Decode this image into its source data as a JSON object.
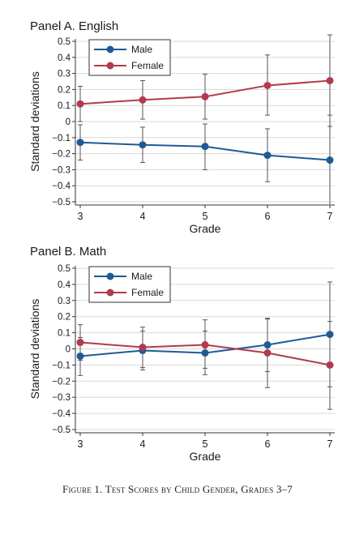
{
  "figure": {
    "caption": "Figure 1. Test Scores by Child Gender, Grades 3–7"
  },
  "colors": {
    "male": "#1f5a96",
    "female": "#b23a4c",
    "error_bar": "#555555",
    "grid": "#d9d9d9"
  },
  "chart_data": [
    {
      "type": "line",
      "title": "Panel A. English",
      "xlabel": "Grade",
      "ylabel": "Standard deviations",
      "x": [
        3,
        4,
        5,
        6,
        7
      ],
      "xticks": [
        "3",
        "4",
        "5",
        "6",
        "7"
      ],
      "ylim": [
        -0.5,
        0.5
      ],
      "yticks": [
        "0.5",
        "0.4",
        "0.3",
        "0.2",
        "0.1",
        "0",
        "−0.1",
        "−0.2",
        "−0.3",
        "−0.4",
        "−0.5"
      ],
      "grid": true,
      "legend": "top-left",
      "series": [
        {
          "name": "Male",
          "values": [
            -0.13,
            -0.145,
            -0.155,
            -0.21,
            -0.24
          ],
          "ci_low": [
            -0.24,
            -0.255,
            -0.3,
            -0.375,
            -0.52
          ],
          "ci_high": [
            -0.02,
            -0.035,
            -0.015,
            -0.045,
            0.04
          ]
        },
        {
          "name": "Female",
          "values": [
            0.11,
            0.135,
            0.155,
            0.225,
            0.255
          ],
          "ci_low": [
            0.0,
            0.015,
            0.015,
            0.04,
            -0.03
          ],
          "ci_high": [
            0.22,
            0.255,
            0.295,
            0.415,
            0.54
          ]
        }
      ]
    },
    {
      "type": "line",
      "title": "Panel B. Math",
      "xlabel": "Grade",
      "ylabel": "Standard deviations",
      "x": [
        3,
        4,
        5,
        6,
        7
      ],
      "xticks": [
        "3",
        "4",
        "5",
        "6",
        "7"
      ],
      "ylim": [
        -0.5,
        0.5
      ],
      "yticks": [
        "0.5",
        "0.4",
        "0.3",
        "0.2",
        "0.1",
        "0",
        "−0.1",
        "−0.2",
        "−0.3",
        "−0.4",
        "−0.5"
      ],
      "grid": true,
      "legend": "top-left",
      "series": [
        {
          "name": "Male",
          "values": [
            -0.045,
            -0.01,
            -0.025,
            0.025,
            0.09
          ],
          "ci_low": [
            -0.165,
            -0.13,
            -0.16,
            -0.14,
            -0.235
          ],
          "ci_high": [
            0.07,
            0.11,
            0.11,
            0.185,
            0.17
          ]
        },
        {
          "name": "Female",
          "values": [
            0.04,
            0.01,
            0.025,
            -0.025,
            -0.1
          ],
          "ci_low": [
            -0.07,
            -0.115,
            -0.12,
            -0.24,
            -0.375
          ],
          "ci_high": [
            0.15,
            0.135,
            0.18,
            0.19,
            0.415
          ]
        }
      ]
    }
  ]
}
